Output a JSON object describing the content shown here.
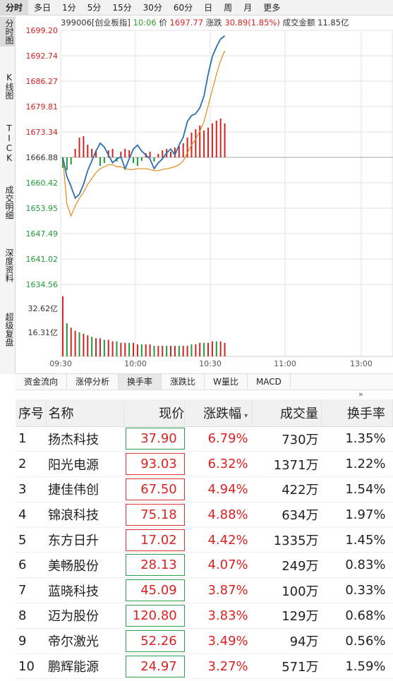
{
  "periods": [
    "分时",
    "多日",
    "1分",
    "5分",
    "15分",
    "30分",
    "60分",
    "日",
    "周",
    "月",
    "更多"
  ],
  "side_tabs": [
    "分时图",
    "K线图",
    "TICK",
    "成交明细",
    "深度资料",
    "超级复盘"
  ],
  "info": {
    "code_name": "399006[创业板指]",
    "time": "10:06",
    "price_label": "价",
    "price": "1697.77",
    "change_label": "涨跌",
    "change": "30.89(1.85%)",
    "amount_label": "成交金额",
    "amount": "11.85亿"
  },
  "chart_data": {
    "type": "line",
    "price_ticks": [
      "1699.20",
      "1692.74",
      "1686.27",
      "1679.81",
      "1673.34",
      "1666.88",
      "1660.42",
      "1653.95",
      "1647.49",
      "1641.02",
      "1634.56"
    ],
    "prev_close": 1666.88,
    "ylim": [
      1634.56,
      1699.2
    ],
    "volume_ticks": [
      "32.62亿",
      "16.31亿"
    ],
    "x_ticks": [
      "09:30",
      "10:00",
      "10:30",
      "11:00",
      "13:00"
    ],
    "series": [
      {
        "values": [
          1666.9,
          1662.0,
          1659.5,
          1656.5,
          1657.5,
          1660.0,
          1663.5,
          1666.0,
          1668.5,
          1670.5,
          1669.5,
          1667.5,
          1665.5,
          1666.5,
          1667.0,
          1664.0,
          1666.5,
          1669.0,
          1670.0,
          1668.5,
          1667.5,
          1666.5,
          1664.0,
          1665.5,
          1666.5,
          1668.0,
          1669.0,
          1667.5,
          1670.0,
          1672.0,
          1676.0,
          1677.5,
          1678.0,
          1679.5,
          1682.5,
          1688.0,
          1692.5,
          1695.0,
          1697.0,
          1697.8
        ]
      },
      {
        "values": [
          1666.9,
          1655.0,
          1652.0,
          1654.5,
          1656.5,
          1658.0,
          1660.0,
          1661.5,
          1663.0,
          1664.0,
          1664.5,
          1665.0,
          1665.0,
          1664.5,
          1664.5,
          1664.0,
          1663.8,
          1663.8,
          1664.0,
          1664.0,
          1664.0,
          1663.8,
          1663.5,
          1663.5,
          1663.8,
          1664.0,
          1664.2,
          1664.5,
          1665.0,
          1666.0,
          1668.0,
          1670.0,
          1671.5,
          1673.5,
          1676.0,
          1680.0,
          1684.0,
          1688.0,
          1691.5,
          1694.0
        ]
      }
    ],
    "bars": [
      -15,
      -18,
      -10,
      12,
      28,
      30,
      18,
      12,
      10,
      -12,
      -8,
      10,
      12,
      -6,
      8,
      12,
      10,
      -8,
      -12,
      -5,
      6,
      8,
      -6,
      5,
      10,
      12,
      8,
      14,
      16,
      20,
      28,
      35,
      40,
      45,
      38,
      42,
      48,
      52,
      55,
      48
    ],
    "volumes": [
      40,
      22,
      19,
      17,
      16,
      15,
      14,
      13,
      12,
      12,
      11,
      11,
      10,
      10,
      9,
      9,
      9,
      9,
      8,
      8,
      8,
      8,
      7,
      7,
      7,
      7,
      7,
      7,
      7,
      7,
      7,
      8,
      8,
      9,
      9,
      9,
      10,
      10,
      10,
      9
    ]
  },
  "indicator_tabs": [
    "资金流向",
    "涨停分析",
    "换手率",
    "涨跌比",
    "W量比",
    "MACD"
  ],
  "table": {
    "headers": [
      "序号",
      "名称",
      "现价",
      "涨跌幅",
      "成交量",
      "换手率"
    ],
    "rows": [
      {
        "idx": "1",
        "name": "扬杰科技",
        "price": "37.90",
        "chg": "6.79%",
        "vol": "730万",
        "turn": "1.35%",
        "box": "down"
      },
      {
        "idx": "2",
        "name": "阳光电源",
        "price": "93.03",
        "chg": "6.32%",
        "vol": "1371万",
        "turn": "1.22%",
        "box": "up"
      },
      {
        "idx": "3",
        "name": "捷佳伟创",
        "price": "67.50",
        "chg": "4.94%",
        "vol": "422万",
        "turn": "1.54%",
        "box": "up"
      },
      {
        "idx": "4",
        "name": "锦浪科技",
        "price": "75.18",
        "chg": "4.88%",
        "vol": "634万",
        "turn": "1.97%",
        "box": "up"
      },
      {
        "idx": "5",
        "name": "东方日升",
        "price": "17.02",
        "chg": "4.42%",
        "vol": "1335万",
        "turn": "1.45%",
        "box": "up"
      },
      {
        "idx": "6",
        "name": "美畅股份",
        "price": "28.13",
        "chg": "4.07%",
        "vol": "249万",
        "turn": "0.83%",
        "box": "down"
      },
      {
        "idx": "7",
        "name": "蓝晓科技",
        "price": "45.09",
        "chg": "3.87%",
        "vol": "100万",
        "turn": "0.33%",
        "box": "down"
      },
      {
        "idx": "8",
        "name": "迈为股份",
        "price": "120.80",
        "chg": "3.83%",
        "vol": "129万",
        "turn": "0.68%",
        "box": "down"
      },
      {
        "idx": "9",
        "name": "帝尔激光",
        "price": "52.26",
        "chg": "3.49%",
        "vol": "94万",
        "turn": "0.56%",
        "box": "down"
      },
      {
        "idx": "10",
        "name": "鹏辉能源",
        "price": "24.97",
        "chg": "3.27%",
        "vol": "571万",
        "turn": "1.59%",
        "box": "down"
      }
    ]
  },
  "colors": {
    "up": "#d22222",
    "down": "#1f9a3a",
    "line": "#2a6fb0",
    "avg": "#e08a1a",
    "grid": "#e3e3e3"
  }
}
